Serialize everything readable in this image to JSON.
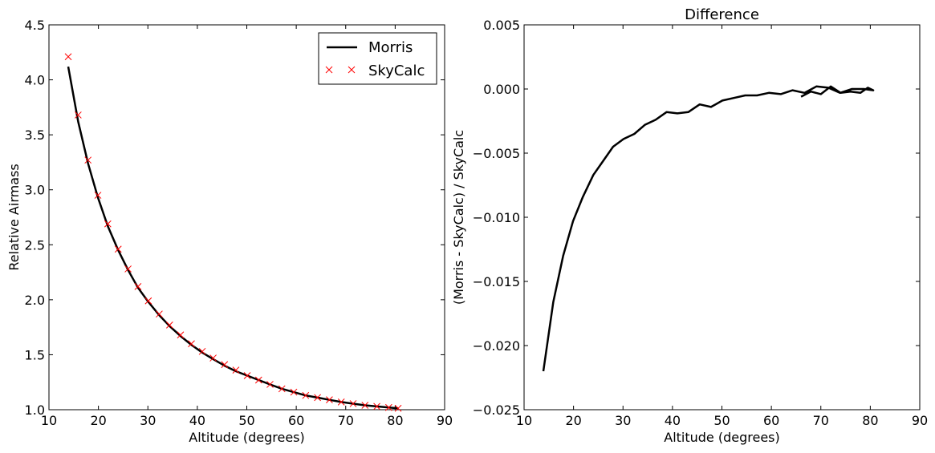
{
  "chart_data": [
    {
      "type": "line",
      "title": "",
      "xlabel": "Altitude (degrees)",
      "ylabel": "Relative Airmass",
      "xlim": [
        10,
        90
      ],
      "ylim": [
        1.0,
        4.5
      ],
      "xticks": [
        10,
        20,
        30,
        40,
        50,
        60,
        70,
        80,
        90
      ],
      "xtick_labels": [
        "10",
        "20",
        "30",
        "40",
        "50",
        "60",
        "70",
        "80",
        "90"
      ],
      "yticks": [
        1.0,
        1.5,
        2.0,
        2.5,
        3.0,
        3.5,
        4.0,
        4.5
      ],
      "ytick_labels": [
        "1.0",
        "1.5",
        "2.0",
        "2.5",
        "3.0",
        "3.5",
        "4.0",
        "4.5"
      ],
      "grid": false,
      "legend": {
        "position": "top-right"
      },
      "series": [
        {
          "name": "Morris",
          "style": "line",
          "color": "#000000",
          "x": [
            13.9,
            15.9,
            17.9,
            19.9,
            21.9,
            24.0,
            26.0,
            28.0,
            30.1,
            32.3,
            34.4,
            36.6,
            38.8,
            41.0,
            43.2,
            45.5,
            47.8,
            50.1,
            52.4,
            54.7,
            57.1,
            59.5,
            61.9,
            64.3,
            66.7,
            69.1,
            71.5,
            73.9,
            76.3,
            78.7,
            80.6
          ],
          "y": [
            4.12,
            3.62,
            3.24,
            2.93,
            2.67,
            2.45,
            2.27,
            2.11,
            1.98,
            1.86,
            1.76,
            1.67,
            1.59,
            1.52,
            1.46,
            1.4,
            1.35,
            1.31,
            1.27,
            1.23,
            1.19,
            1.16,
            1.13,
            1.11,
            1.09,
            1.07,
            1.055,
            1.04,
            1.03,
            1.02,
            1.013
          ]
        },
        {
          "name": "SkyCalc",
          "style": "markers",
          "marker": "x",
          "color": "#ff0000",
          "x": [
            13.9,
            15.9,
            17.9,
            19.9,
            21.9,
            24.0,
            26.0,
            28.0,
            30.1,
            32.3,
            34.4,
            36.6,
            38.8,
            41.0,
            43.2,
            45.5,
            47.8,
            50.1,
            52.4,
            54.7,
            57.1,
            59.5,
            61.9,
            64.3,
            66.7,
            69.1,
            71.5,
            73.9,
            76.3,
            78.7,
            80.6
          ],
          "y": [
            4.21,
            3.68,
            3.27,
            2.95,
            2.69,
            2.46,
            2.28,
            2.12,
            1.99,
            1.87,
            1.77,
            1.68,
            1.6,
            1.53,
            1.47,
            1.41,
            1.36,
            1.31,
            1.27,
            1.23,
            1.19,
            1.16,
            1.13,
            1.11,
            1.09,
            1.07,
            1.055,
            1.04,
            1.03,
            1.02,
            1.013
          ]
        }
      ]
    },
    {
      "type": "line",
      "title": "Difference",
      "xlabel": "Altitude (degrees)",
      "ylabel": "(Morris - SkyCalc) / SkyCalc",
      "xlim": [
        10,
        90
      ],
      "ylim": [
        -0.025,
        0.005
      ],
      "xticks": [
        10,
        20,
        30,
        40,
        50,
        60,
        70,
        80,
        90
      ],
      "xtick_labels": [
        "10",
        "20",
        "30",
        "40",
        "50",
        "60",
        "70",
        "80",
        "90"
      ],
      "yticks": [
        0.005,
        0.0,
        -0.005,
        -0.01,
        -0.015,
        -0.02,
        -0.025
      ],
      "ytick_labels": [
        "0.005",
        "0.000",
        "−0.005",
        "−0.010",
        "−0.015",
        "−0.020",
        "−0.025"
      ],
      "grid": false,
      "series": [
        {
          "style": "line",
          "color": "#000000",
          "x": [
            13.9,
            15.9,
            17.9,
            19.9,
            21.9,
            24.0,
            26.0,
            28.0,
            30.1,
            32.3,
            34.4,
            36.6,
            38.8,
            41.0,
            43.2,
            45.5,
            47.8,
            50.1,
            52.4,
            54.7,
            57.1,
            59.5,
            61.9,
            64.3,
            66.7,
            69.1,
            71.5,
            73.9,
            76.3,
            78.7,
            80.6,
            79.5,
            78.0,
            76.0,
            74.0,
            72.0,
            70.0,
            68.0,
            66.0
          ],
          "y": [
            -0.022,
            -0.0166,
            -0.013,
            -0.0103,
            -0.0084,
            -0.0067,
            -0.0056,
            -0.0045,
            -0.0039,
            -0.0035,
            -0.0028,
            -0.0024,
            -0.0018,
            -0.0019,
            -0.0018,
            -0.0012,
            -0.0014,
            -0.0009,
            -0.0007,
            -0.0005,
            -0.0005,
            -0.0003,
            -0.0004,
            -0.0001,
            -0.0003,
            0.0002,
            0.0001,
            -0.0003,
            0.0,
            0.0,
            -0.0001,
            0.0001,
            -0.0003,
            -0.0002,
            -0.0003,
            0.0002,
            -0.0004,
            -0.0002,
            -0.0006
          ]
        }
      ]
    }
  ]
}
